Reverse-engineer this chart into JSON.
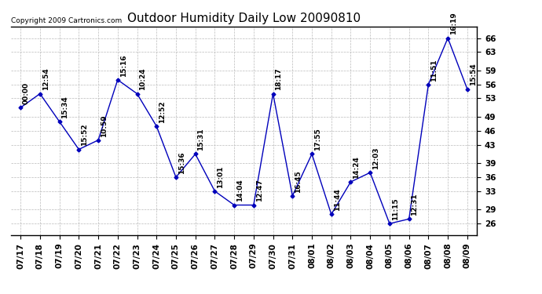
{
  "title": "Outdoor Humidity Daily Low 20090810",
  "copyright": "Copyright 2009 Cartronics.com",
  "x_labels": [
    "07/17",
    "07/18",
    "07/19",
    "07/20",
    "07/21",
    "07/22",
    "07/23",
    "07/24",
    "07/25",
    "07/26",
    "07/27",
    "07/28",
    "07/29",
    "07/30",
    "07/31",
    "08/01",
    "08/02",
    "08/03",
    "08/04",
    "08/05",
    "08/06",
    "08/07",
    "08/08",
    "08/09"
  ],
  "y_values": [
    51,
    54,
    48,
    42,
    44,
    57,
    54,
    47,
    36,
    41,
    33,
    30,
    30,
    54,
    32,
    41,
    28,
    35,
    37,
    26,
    27,
    56,
    66,
    55
  ],
  "time_labels": [
    "00:00",
    "12:54",
    "15:34",
    "15:52",
    "10:59",
    "15:16",
    "10:24",
    "12:52",
    "15:36",
    "15:31",
    "13:01",
    "14:04",
    "12:47",
    "18:17",
    "16:45",
    "17:55",
    "11:44",
    "14:24",
    "12:03",
    "11:15",
    "12:31",
    "11:51",
    "16:19",
    "15:54"
  ],
  "line_color": "#0000bb",
  "marker_color": "#0000bb",
  "background_color": "#ffffff",
  "grid_color": "#bbbbbb",
  "title_fontsize": 11,
  "copyright_fontsize": 6.5,
  "label_fontsize": 6.5,
  "tick_fontsize": 7.5,
  "y_ticks": [
    26,
    29,
    33,
    36,
    39,
    43,
    46,
    49,
    53,
    56,
    59,
    63,
    66
  ],
  "ylim": [
    23.5,
    68.5
  ],
  "xlim": [
    -0.5,
    23.5
  ]
}
